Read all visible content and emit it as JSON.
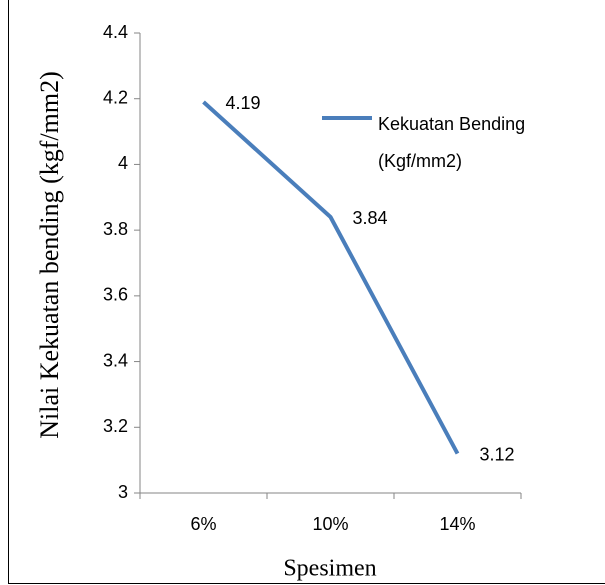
{
  "chart_data": {
    "type": "line",
    "categories": [
      "6%",
      "10%",
      "14%"
    ],
    "series": [
      {
        "name": "Kekuatan Bending (Kgf/mm2)",
        "color": "#4a7ebb",
        "values": [
          4.19,
          3.84,
          3.12
        ]
      }
    ],
    "ylim": [
      3,
      4.4
    ],
    "yticks": [
      3,
      3.2,
      3.4,
      3.6,
      3.8,
      4,
      4.2,
      4.4
    ],
    "y_label": "Nilai Kekuatan bending (kgf/mm2)",
    "x_label": "Spesimen",
    "legend": "right",
    "grid": false
  }
}
